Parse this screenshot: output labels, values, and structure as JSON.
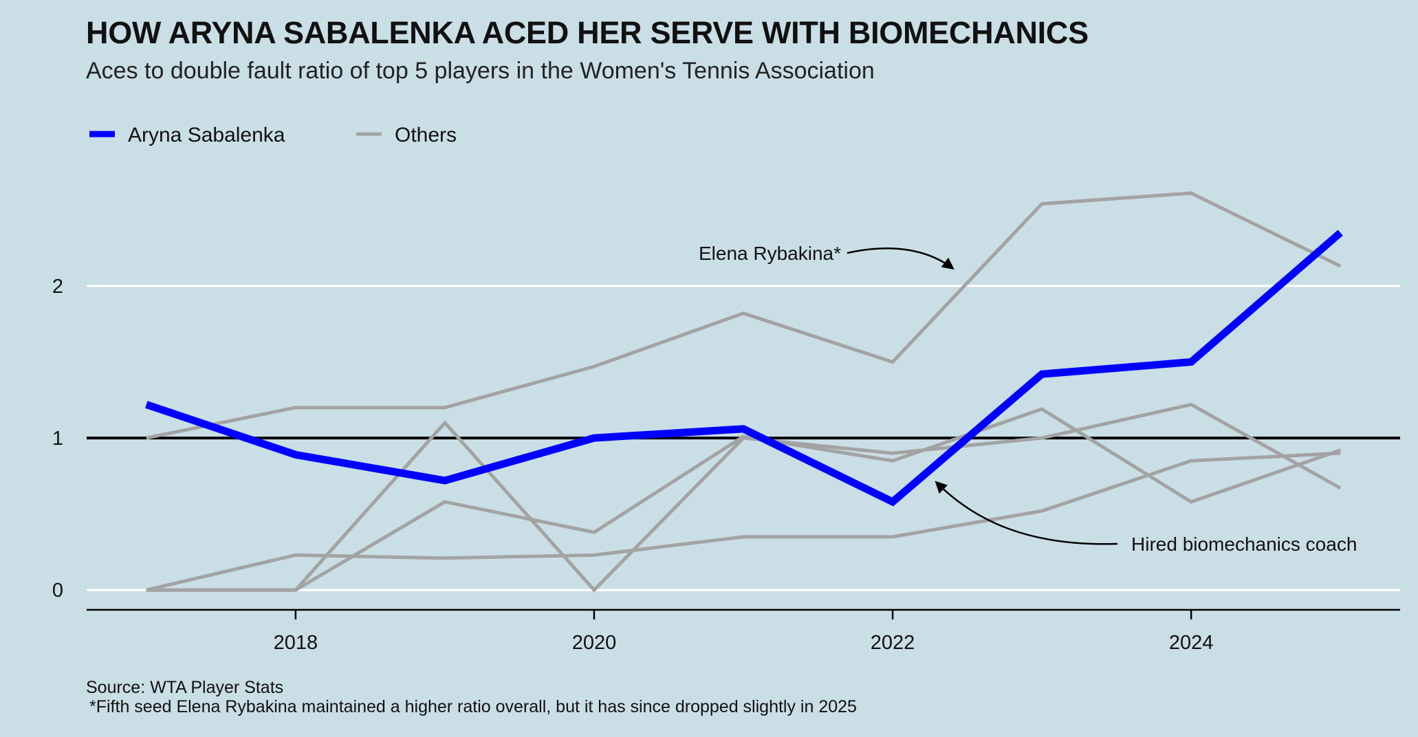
{
  "header": {
    "title": "HOW ARYNA SABALENKA ACED HER SERVE WITH BIOMECHANICS",
    "subtitle": "Aces to double fault ratio of top 5 players in the Women's Tennis Association"
  },
  "legend": [
    {
      "label": "Aryna Sabalenka",
      "color": "#0000ff"
    },
    {
      "label": "Others",
      "color": "#a3a3a3"
    }
  ],
  "annotations": {
    "rybakina": "Elena Rybakina*",
    "coach": "Hired biomechanics coach"
  },
  "footer": {
    "source": "Source: WTA Player Stats",
    "note": "*Fifth seed Elena Rybakina maintained a higher ratio overall, but it has since dropped slightly in 2025"
  },
  "colors": {
    "background": "#cadee6",
    "highlight": "#0000ff",
    "others": "#a3a3a3",
    "reference_line": "#000000",
    "grid": "#ffffff"
  },
  "chart_data": {
    "type": "line",
    "title": "HOW ARYNA SABALENKA ACED HER SERVE WITH BIOMECHANICS",
    "subtitle": "Aces to double fault ratio of top 5 players in the Women's Tennis Association",
    "xlabel": "",
    "ylabel": "",
    "x": [
      2017,
      2018,
      2019,
      2020,
      2021,
      2022,
      2023,
      2024,
      2025
    ],
    "xticks": [
      "2018",
      "2020",
      "2022",
      "2024"
    ],
    "xtick_values": [
      2018,
      2020,
      2022,
      2024
    ],
    "yticks": [
      "0",
      "1",
      "2"
    ],
    "ytick_values": [
      0,
      1,
      2
    ],
    "xlim": [
      2016.6,
      2025.4
    ],
    "ylim": [
      -0.13,
      2.75
    ],
    "reference_line": 1,
    "grid": "horizontal",
    "legend_position": "top-left",
    "series": [
      {
        "name": "Aryna Sabalenka",
        "highlight": true,
        "values": [
          1.22,
          0.89,
          0.72,
          1.0,
          1.06,
          0.58,
          1.42,
          1.5,
          2.35
        ]
      },
      {
        "name": "Elena Rybakina*",
        "highlight": false,
        "values": [
          1.0,
          1.2,
          1.2,
          1.47,
          1.82,
          1.5,
          2.54,
          2.61,
          2.13
        ]
      },
      {
        "highlight": false,
        "values": [
          0.0,
          0.0,
          1.1,
          0.0,
          1.0,
          0.9,
          1.0,
          1.22,
          0.67
        ]
      },
      {
        "highlight": false,
        "values": [
          0.0,
          0.0,
          0.58,
          0.38,
          1.01,
          0.85,
          1.19,
          0.58,
          0.92
        ]
      },
      {
        "highlight": false,
        "values": [
          0.0,
          0.23,
          0.21,
          0.23,
          0.35,
          0.35,
          0.52,
          0.85,
          0.9
        ]
      }
    ]
  }
}
